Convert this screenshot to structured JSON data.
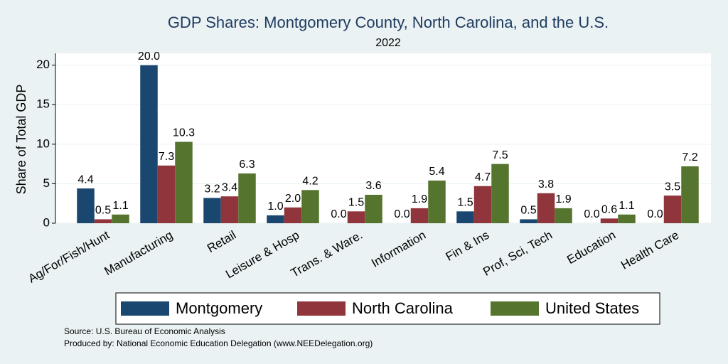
{
  "chart_data": {
    "type": "bar",
    "title": "GDP Shares: Montgomery County, North Carolina, and the U.S.",
    "subtitle": "2022",
    "y_label": "Share of Total GDP",
    "categories": [
      "Ag/For/Fish/Hunt",
      "Manufacturing",
      "Retail",
      "Leisure & Hosp",
      "Trans. & Ware.",
      "Information",
      "Fin & Ins",
      "Prof, Sci, Tech",
      "Education",
      "Health Care"
    ],
    "series": [
      {
        "name": "Montgomery",
        "color": "#1a476f",
        "values": [
          4.4,
          20.0,
          3.2,
          1.0,
          0.0,
          0.0,
          1.5,
          0.5,
          0.0,
          0.0
        ],
        "value_labels": [
          "4.4",
          "20.0",
          "3.2",
          "1.0",
          "0.0",
          "0.0",
          "1.5",
          "0.5",
          "0.0",
          "0.0"
        ]
      },
      {
        "name": "North Carolina",
        "color": "#90353b",
        "values": [
          0.5,
          7.3,
          3.4,
          2.0,
          1.5,
          1.9,
          4.7,
          3.8,
          0.6,
          3.5
        ],
        "value_labels": [
          "0.5",
          "7.3",
          "3.4",
          "2.0",
          "1.5",
          "1.9",
          "4.7",
          "3.8",
          "0.6",
          "3.5"
        ]
      },
      {
        "name": "United States",
        "color": "#55752f",
        "values": [
          1.1,
          10.3,
          6.3,
          4.2,
          3.6,
          5.4,
          7.5,
          1.9,
          1.1,
          7.2
        ],
        "value_labels": [
          "1.1",
          "10.3",
          "6.3",
          "4.2",
          "3.6",
          "5.4",
          "7.5",
          "1.9",
          "1.1",
          "7.2"
        ]
      }
    ],
    "ylim": [
      0,
      21.5
    ],
    "yticks": [
      0,
      5,
      10,
      15,
      20
    ],
    "grid": true,
    "notes": [
      "Source: U.S. Bureau of Economic Analysis",
      "Produced by: National Economic Education Delegation (www.NEEDelegation.org)"
    ]
  }
}
